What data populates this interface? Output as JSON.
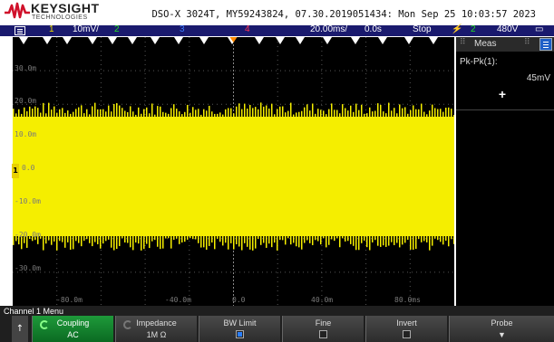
{
  "header": {
    "brand": "KEYSIGHT",
    "brand_sub": "TECHNOLOGIES",
    "title": "DSO-X 3024T, MY59243824, 07.30.2019051434: Mon Sep 25 10:03:57 2023"
  },
  "status_bar": {
    "ch1_num": "1",
    "ch1_scale": "10mV/",
    "ch2_num": "2",
    "ch3_num": "3",
    "ch4_num": "4",
    "timebase": "20.00ms/",
    "delay": "0.0s",
    "run_state": "Stop",
    "trigger_source": "2",
    "trigger_level": "480V",
    "colors": {
      "ch1": "#f0e000",
      "ch2": "#22dd22",
      "ch3": "#3a7bff",
      "ch4": "#ff3355",
      "trigger": "#22dd22"
    }
  },
  "plot": {
    "y_labels": [
      "30.0m",
      "20.0m",
      "10.0m",
      "0.0",
      "-10.0m",
      "-20.0m",
      "-30.0m"
    ],
    "x_labels": [
      "-80.0m",
      "-40.0m",
      "0.0",
      "40.0m",
      "80.0ms"
    ],
    "channel_marker": "1",
    "trace_color": "#f5ee00",
    "grid": true
  },
  "measurements": {
    "title": "Meas",
    "name": "Pk-Pk(1):",
    "value": "45mV",
    "add_label": "+"
  },
  "softkeys": {
    "menu_title": "Channel 1 Menu",
    "back_label": "↑",
    "coupling_label": "Coupling",
    "coupling_value": "AC",
    "impedance_label": "Impedance",
    "impedance_value": "1M Ω",
    "bwlimit_label": "BW Limit",
    "bwlimit_checked": true,
    "fine_label": "Fine",
    "invert_label": "Invert",
    "probe_label": "Probe"
  }
}
